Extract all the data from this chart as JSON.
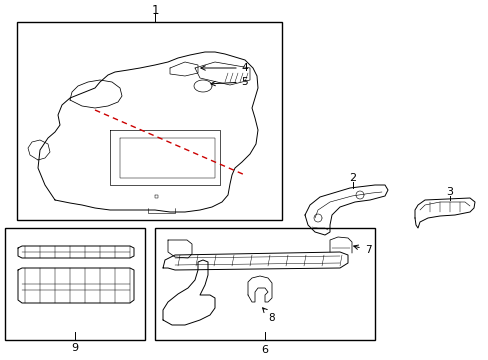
{
  "background_color": "#ffffff",
  "line_color": "#000000",
  "red_dashed_color": "#cc0000",
  "lw": 0.7
}
